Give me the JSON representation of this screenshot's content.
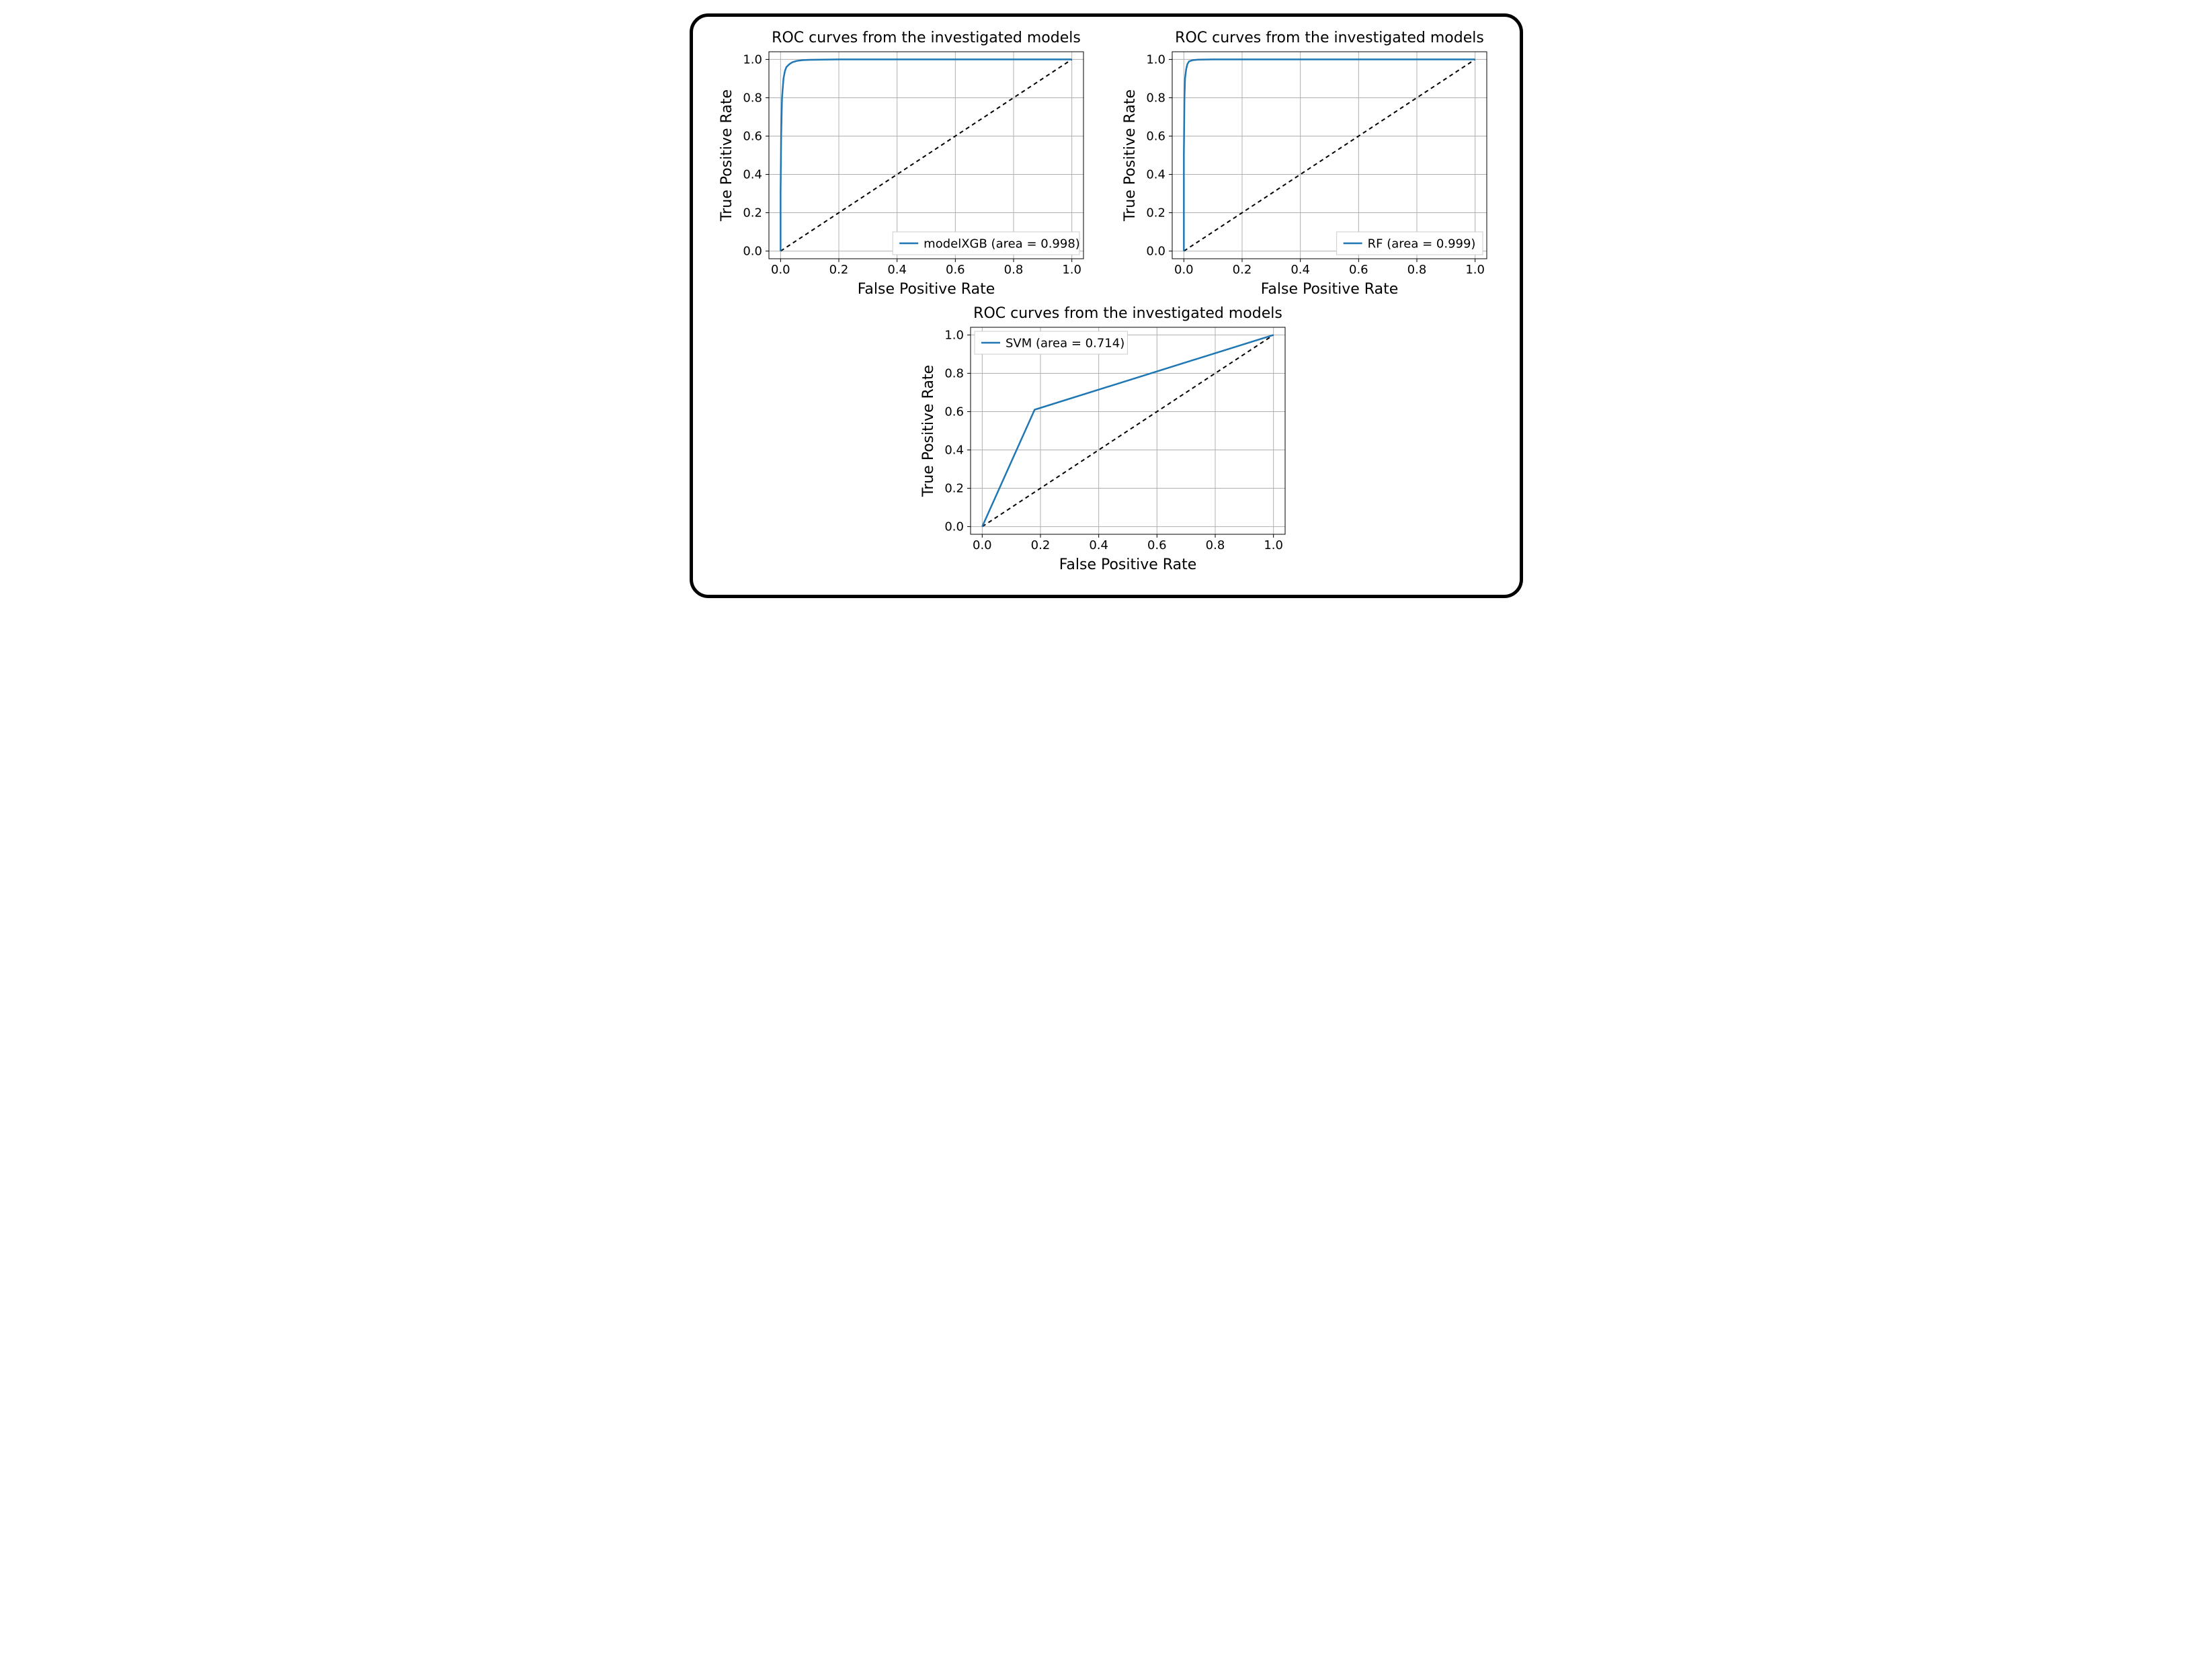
{
  "figure": {
    "outer_width": 1240,
    "outer_height": 930,
    "background_color": "#ffffff",
    "border_color": "#000000",
    "border_width": 5,
    "border_radius": 28
  },
  "common": {
    "title": "ROC curves from the investigated models",
    "xlabel": "False Positive Rate",
    "ylabel": "True Positive Rate",
    "xlim": [
      -0.04,
      1.04
    ],
    "ylim": [
      -0.04,
      1.04
    ],
    "xticks": [
      0.0,
      0.2,
      0.4,
      0.6,
      0.8,
      1.0
    ],
    "yticks": [
      0.0,
      0.2,
      0.4,
      0.6,
      0.8,
      1.0
    ],
    "xtick_labels": [
      "0.0",
      "0.2",
      "0.4",
      "0.6",
      "0.8",
      "1.0"
    ],
    "ytick_labels": [
      "0.0",
      "0.2",
      "0.4",
      "0.6",
      "0.8",
      "1.0"
    ],
    "grid_color": "#b0b0b0",
    "grid_linewidth": 1,
    "axis_color": "#000000",
    "axis_linewidth": 1,
    "tick_fontsize": 18,
    "label_fontsize": 22,
    "title_fontsize": 22,
    "diagonal": {
      "color": "#000000",
      "linewidth": 2,
      "dash": "6,5"
    },
    "curve_color": "#1f77b4",
    "curve_linewidth": 2.5,
    "legend": {
      "border_color": "#cccccc",
      "bg_color": "#ffffff",
      "fontsize": 18,
      "line_length": 28
    }
  },
  "panels": [
    {
      "id": "xgb",
      "type": "roc",
      "legend_label": "modelXGB (area = 0.998)",
      "legend_loc": "lower-right",
      "curve": [
        [
          0.0,
          0.0
        ],
        [
          0.0,
          0.3
        ],
        [
          0.002,
          0.6
        ],
        [
          0.005,
          0.8
        ],
        [
          0.01,
          0.9
        ],
        [
          0.015,
          0.94
        ],
        [
          0.02,
          0.96
        ],
        [
          0.03,
          0.975
        ],
        [
          0.04,
          0.985
        ],
        [
          0.055,
          0.992
        ],
        [
          0.075,
          0.996
        ],
        [
          0.1,
          0.998
        ],
        [
          0.2,
          1.0
        ],
        [
          1.0,
          1.0
        ]
      ]
    },
    {
      "id": "rf",
      "type": "roc",
      "legend_label": "RF (area = 0.999)",
      "legend_loc": "lower-right",
      "curve": [
        [
          0.0,
          0.0
        ],
        [
          0.0,
          0.5
        ],
        [
          0.002,
          0.8
        ],
        [
          0.004,
          0.9
        ],
        [
          0.008,
          0.95
        ],
        [
          0.012,
          0.975
        ],
        [
          0.018,
          0.99
        ],
        [
          0.03,
          0.996
        ],
        [
          0.05,
          0.999
        ],
        [
          0.1,
          1.0
        ],
        [
          1.0,
          1.0
        ]
      ]
    },
    {
      "id": "svm",
      "type": "roc",
      "legend_label": "SVM (area = 0.714)",
      "legend_loc": "upper-left",
      "curve": [
        [
          0.0,
          0.0
        ],
        [
          0.18,
          0.61
        ],
        [
          1.0,
          1.0
        ]
      ]
    }
  ]
}
